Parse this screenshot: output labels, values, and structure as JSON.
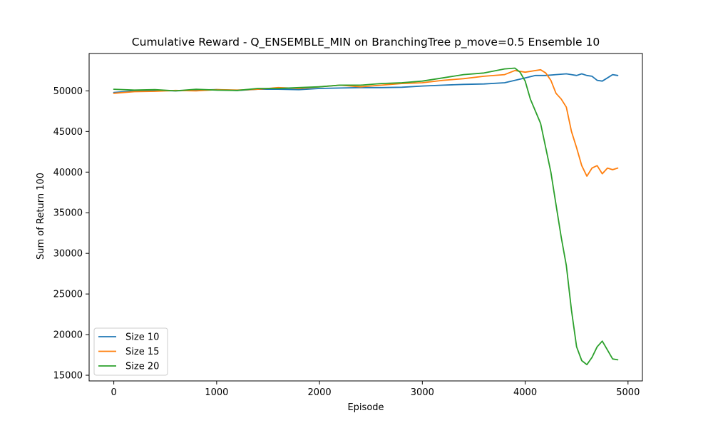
{
  "chart_data": {
    "type": "line",
    "title": "Cumulative Reward - Q_ENSEMBLE_MIN on BranchingTree p_move=0.5 Ensemble 10",
    "xlabel": "Episode",
    "ylabel": "Sum of Return 100",
    "xlim": [
      -240,
      5140
    ],
    "ylim": [
      14300,
      54600
    ],
    "xticks": [
      0,
      1000,
      2000,
      3000,
      4000,
      5000
    ],
    "yticks": [
      15000,
      20000,
      25000,
      30000,
      35000,
      40000,
      45000,
      50000
    ],
    "grid": false,
    "legend_position": "lower-left",
    "series": [
      {
        "name": "Size 10",
        "color": "#1f77b4",
        "x": [
          0,
          200,
          400,
          600,
          800,
          1000,
          1200,
          1400,
          1600,
          1800,
          2000,
          2200,
          2400,
          2600,
          2800,
          3000,
          3200,
          3400,
          3600,
          3800,
          4000,
          4100,
          4200,
          4300,
          4400,
          4450,
          4500,
          4550,
          4600,
          4650,
          4700,
          4750,
          4800,
          4850,
          4900
        ],
        "values": [
          49800,
          50000,
          50050,
          50000,
          50100,
          50150,
          50050,
          50200,
          50200,
          50150,
          50300,
          50350,
          50400,
          50400,
          50450,
          50600,
          50700,
          50800,
          50850,
          51000,
          51600,
          51900,
          51900,
          52000,
          52100,
          52000,
          51900,
          52100,
          51900,
          51800,
          51300,
          51200,
          51600,
          52000,
          51900
        ]
      },
      {
        "name": "Size 15",
        "color": "#ff7f0e",
        "x": [
          0,
          200,
          400,
          600,
          800,
          1000,
          1200,
          1400,
          1600,
          1800,
          2000,
          2200,
          2400,
          2600,
          2800,
          3000,
          3200,
          3400,
          3600,
          3800,
          3900,
          4000,
          4100,
          4150,
          4200,
          4250,
          4300,
          4350,
          4400,
          4450,
          4500,
          4550,
          4600,
          4650,
          4700,
          4750,
          4800,
          4850,
          4900
        ],
        "values": [
          49700,
          49900,
          49950,
          50050,
          50000,
          50150,
          50100,
          50200,
          50400,
          50300,
          50500,
          50700,
          50500,
          50700,
          50900,
          51000,
          51300,
          51500,
          51800,
          52000,
          52500,
          52300,
          52500,
          52600,
          52200,
          51300,
          49700,
          49000,
          48000,
          45000,
          43000,
          40800,
          39500,
          40500,
          40800,
          39800,
          40500,
          40300,
          40500
        ]
      },
      {
        "name": "Size 20",
        "color": "#2ca02c",
        "x": [
          0,
          200,
          400,
          600,
          800,
          1000,
          1200,
          1400,
          1600,
          1800,
          2000,
          2200,
          2400,
          2600,
          2800,
          3000,
          3200,
          3400,
          3600,
          3800,
          3900,
          3950,
          4000,
          4050,
          4100,
          4150,
          4200,
          4250,
          4300,
          4350,
          4400,
          4450,
          4500,
          4550,
          4600,
          4650,
          4700,
          4750,
          4800,
          4850,
          4900
        ],
        "values": [
          50200,
          50100,
          50150,
          50000,
          50200,
          50100,
          50050,
          50300,
          50300,
          50400,
          50500,
          50700,
          50700,
          50900,
          51000,
          51200,
          51600,
          52000,
          52200,
          52700,
          52800,
          52300,
          51200,
          49000,
          47500,
          46000,
          43000,
          40000,
          36000,
          32000,
          28500,
          23000,
          18500,
          16800,
          16300,
          17200,
          18500,
          19200,
          18100,
          17000,
          16900
        ]
      }
    ]
  }
}
